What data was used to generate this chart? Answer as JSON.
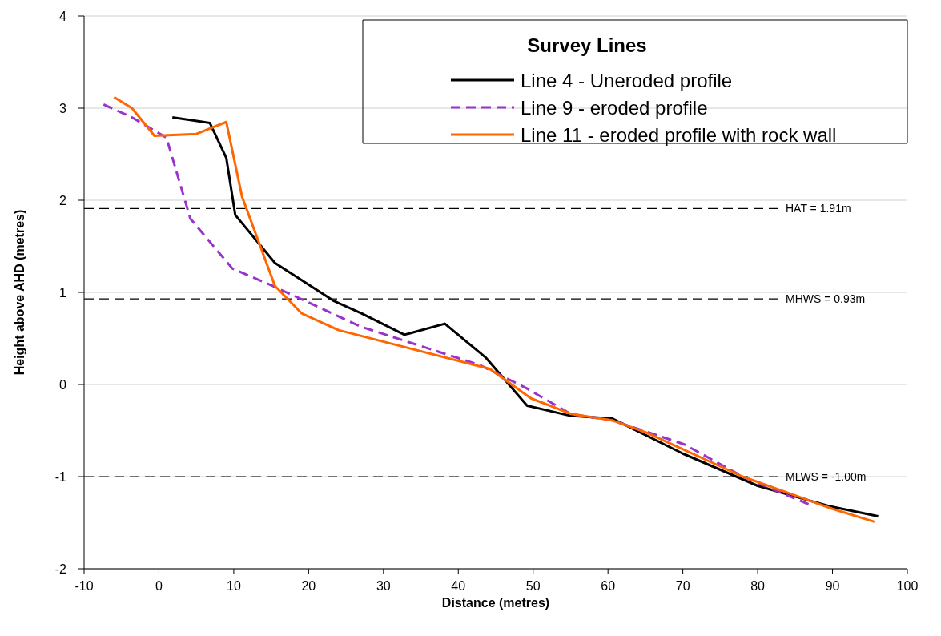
{
  "chart_data": {
    "type": "line",
    "xlabel": "Distance (metres)",
    "ylabel": "Height above AHD (metres)",
    "legend_title": "Survey Lines",
    "legend": "top right",
    "grid": "y",
    "xlim": [
      -10,
      100
    ],
    "xticks": [
      -10,
      0,
      10,
      20,
      30,
      40,
      50,
      60,
      70,
      80,
      90,
      100
    ],
    "ylim": [
      -2,
      4
    ],
    "yticks": [
      -2,
      -1,
      0,
      1,
      2,
      3,
      4
    ],
    "series": [
      {
        "name": "Line 4 - Uneroded profile",
        "color": "#000000",
        "line_style": "solid",
        "x": [
          1.8,
          6.8,
          9.0,
          10.2,
          15.5,
          23.3,
          27.1,
          32.8,
          38.2,
          43.7,
          49.2,
          55,
          60.6,
          70,
          80,
          89.5,
          96.1
        ],
        "values": [
          2.9,
          2.84,
          2.46,
          1.84,
          1.32,
          0.91,
          0.77,
          0.54,
          0.66,
          0.29,
          -0.23,
          -0.34,
          -0.37,
          -0.75,
          -1.1,
          -1.32,
          -1.43
        ]
      },
      {
        "name": "Line 9 - eroded profile",
        "color": "#9933cc",
        "line_style": "dashed",
        "x": [
          -7.4,
          -3.6,
          1.0,
          4.2,
          9.8,
          15.2,
          26.9,
          42.9,
          49.1,
          55,
          60.6,
          70.2,
          78,
          86.8
        ],
        "values": [
          3.04,
          2.9,
          2.68,
          1.8,
          1.26,
          1.07,
          0.63,
          0.21,
          -0.04,
          -0.32,
          -0.39,
          -0.65,
          -1.0,
          -1.3
        ]
      },
      {
        "name": "Line 11 - eroded profile with rock wall",
        "color": "#ff6600",
        "line_style": "solid",
        "x": [
          -6.0,
          -3.6,
          -0.6,
          5.0,
          9.0,
          11.1,
          15.5,
          19.1,
          24.0,
          44.2,
          49.7,
          55.1,
          60.6,
          65.1,
          78,
          90,
          95.6
        ],
        "values": [
          3.12,
          3.0,
          2.7,
          2.72,
          2.85,
          2.04,
          1.07,
          0.77,
          0.59,
          0.17,
          -0.15,
          -0.32,
          -0.39,
          -0.52,
          -1.0,
          -1.35,
          -1.49
        ]
      }
    ],
    "ref_lines": [
      {
        "axis": "y",
        "value": 1.91,
        "label": "HAT = 1.91m",
        "line_style": "dashed",
        "color": "#000000"
      },
      {
        "axis": "y",
        "value": 0.93,
        "label": "MHWS = 0.93m",
        "line_style": "dashed",
        "color": "#000000"
      },
      {
        "axis": "y",
        "value": -1.0,
        "label": "MLWS = -1.00m",
        "line_style": "dashed",
        "color": "#000000"
      }
    ]
  }
}
